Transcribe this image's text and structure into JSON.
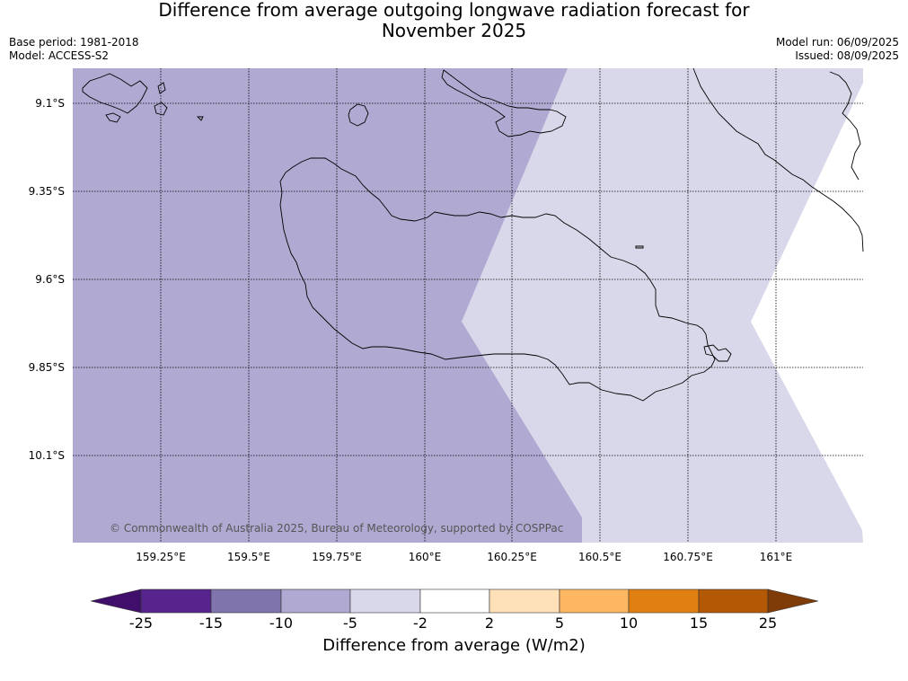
{
  "title_line1": "Difference from average outgoing longwave radiation forecast for",
  "title_line2": "November 2025",
  "base_period": "Base period: 1981-2018",
  "model": "Model: ACCESS-S2",
  "model_run": "Model run: 06/09/2025",
  "issued": "Issued: 08/09/2025",
  "copyright": "© Commonwealth of Australia 2025, Bureau of Meteorology, supported by COSPPac",
  "map": {
    "lat_ticks": [
      "9.1°S",
      "9.35°S",
      "9.6°S",
      "9.85°S",
      "10.1°S"
    ],
    "lon_ticks": [
      "159.25°E",
      "159.5°E",
      "159.75°E",
      "160°E",
      "160.25°E",
      "160.5°E",
      "160.75°E",
      "161°E"
    ],
    "region_colors": {
      "minus10_to_minus5": "#b0aad2",
      "minus5_to_minus2": "#d8d8ea",
      "minus2_to_2": "#ffffff"
    }
  },
  "colorbar": {
    "label": "Difference from average (W/m2)",
    "ticks": [
      "-25",
      "-15",
      "-10",
      "-5",
      "-2",
      "2",
      "5",
      "10",
      "15",
      "25"
    ],
    "colors": [
      "#3f0f6b",
      "#57238c",
      "#8074ac",
      "#b0aad2",
      "#d8d8ea",
      "#ffffff",
      "#fee1b8",
      "#fdb762",
      "#e08012",
      "#b35805",
      "#7f3b08"
    ]
  }
}
